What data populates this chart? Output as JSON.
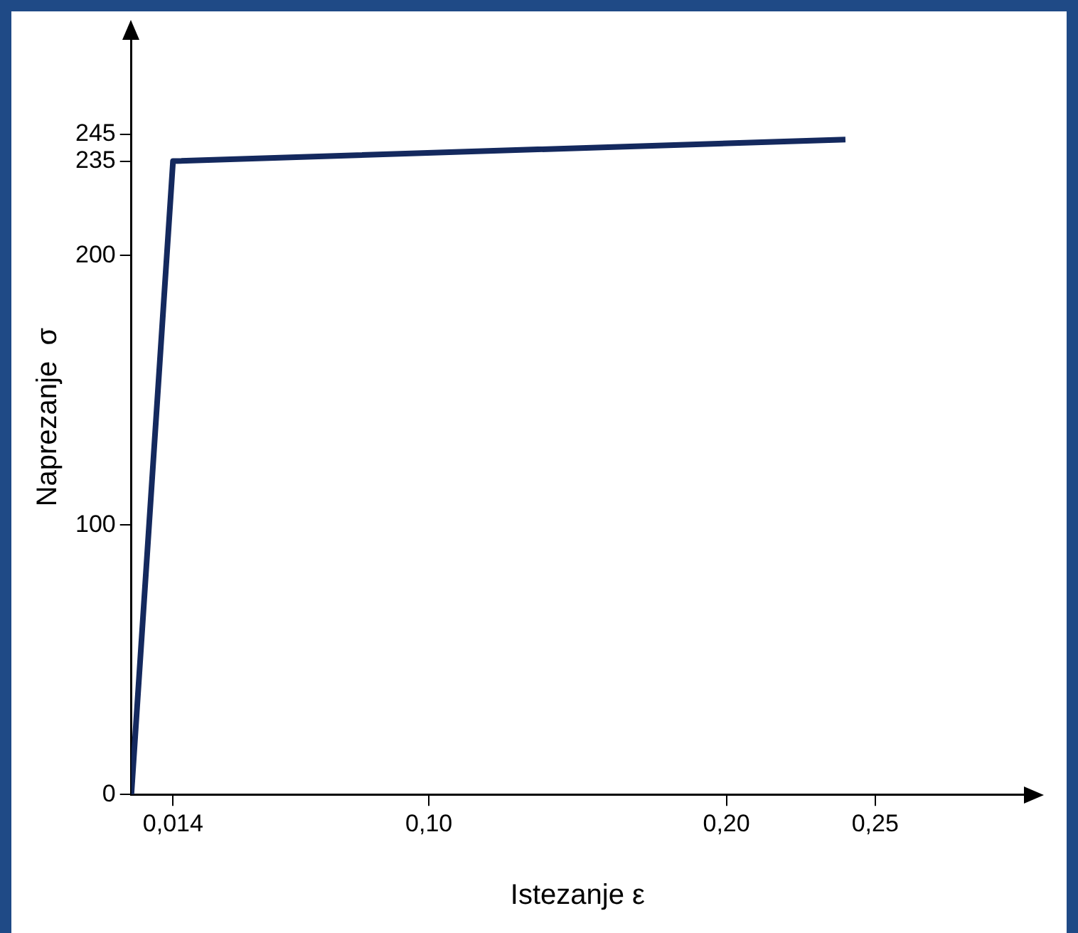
{
  "chart_data": {
    "type": "line",
    "xlabel": "Istezanje ε",
    "ylabel": "Naprezanje  σ",
    "x": [
      0,
      0.014,
      0.24
    ],
    "series": [
      {
        "color": "#14295e",
        "values": [
          0,
          235,
          243
        ]
      }
    ],
    "xlim": [
      0,
      0.3
    ],
    "ylim": [
      0,
      280
    ],
    "xticks": [
      {
        "value": 0.014,
        "label": "0,014"
      },
      {
        "value": 0.1,
        "label": "0,10"
      },
      {
        "value": 0.2,
        "label": "0,20"
      },
      {
        "value": 0.25,
        "label": "0,25"
      }
    ],
    "yticks": [
      0,
      100,
      200,
      235,
      245
    ],
    "grid": false,
    "legend": false,
    "marker": "none",
    "line_style": "solid"
  }
}
